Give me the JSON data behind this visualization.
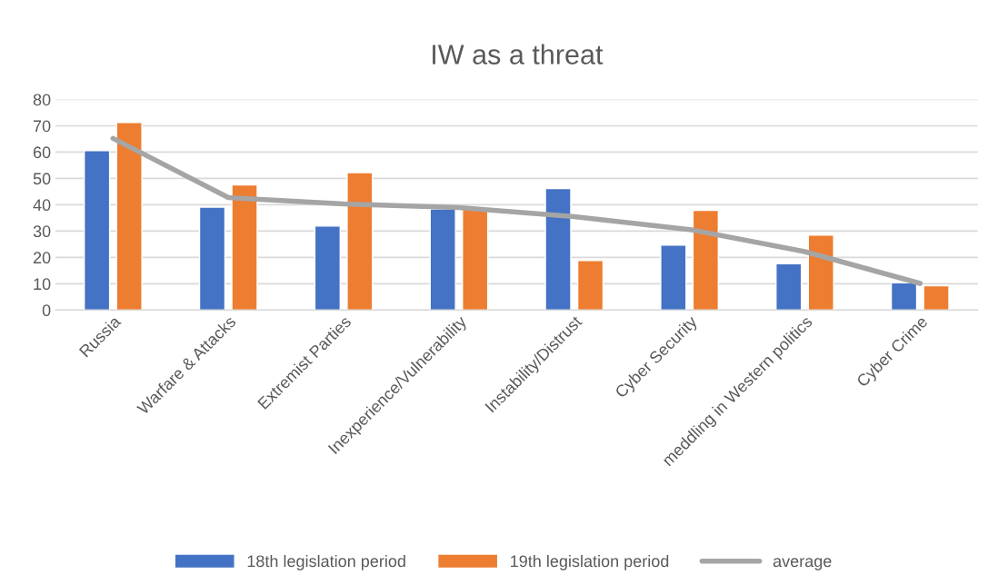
{
  "chart_data": {
    "type": "bar",
    "title": "IW as a threat",
    "categories": [
      "Russia",
      "Warfare & Attacks",
      "Extremist Parties",
      "Inexperience/Vulnerability",
      "Instability/Distrust",
      "Cyber Security",
      "meddling in Western politics",
      "Cyber Crime"
    ],
    "series": [
      {
        "name": "18th legislation period",
        "color": "#4472c4",
        "values": [
          60.6,
          39.1,
          31.9,
          38.4,
          46.2,
          24.7,
          17.6,
          10.4
        ]
      },
      {
        "name": "19th legislation period",
        "color": "#ed7d31",
        "values": [
          71.3,
          47.5,
          52.2,
          38.4,
          18.8,
          37.9,
          28.5,
          9.2
        ]
      },
      {
        "name": "average",
        "type": "line",
        "color": "#a5a5a5",
        "values": [
          65.2,
          42.7,
          40.3,
          38.9,
          35.5,
          30.6,
          22.2,
          10.1
        ]
      }
    ],
    "ylim": [
      0,
      80
    ],
    "yticks": [
      0,
      10,
      20,
      30,
      40,
      50,
      60,
      70,
      80
    ],
    "grid": "y",
    "legend": "bottom"
  }
}
